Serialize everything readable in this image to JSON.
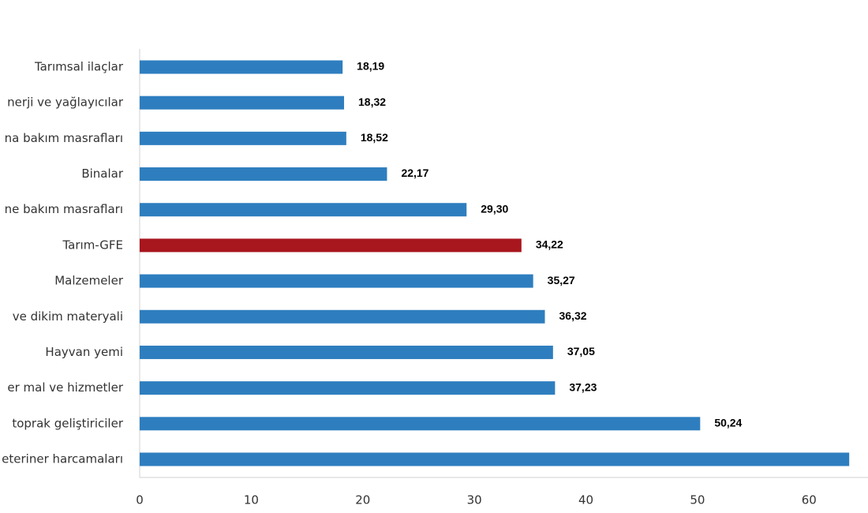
{
  "chart_data": {
    "type": "bar",
    "orientation": "horizontal",
    "categories": [
      "Tarımsal ilaçlar",
      "nerji  ve yağlayıcılar",
      "na bakım masrafları",
      "Binalar",
      "ne bakım masrafları",
      "Tarım-GFE",
      "Malzemeler",
      "ve dikim materyali",
      "Hayvan yemi",
      "er mal ve hizmetler",
      "toprak geliştiriciler",
      "eteriner harcamaları"
    ],
    "values": [
      18.19,
      18.32,
      18.52,
      22.17,
      29.3,
      34.22,
      35.27,
      36.32,
      37.05,
      37.23,
      50.24,
      63.6
    ],
    "value_labels": [
      "18,19",
      "18,32",
      "18,52",
      "22,17",
      "29,30",
      "34,22",
      "35,27",
      "36,32",
      "37,05",
      "37,23",
      "50,24",
      null
    ],
    "colors": [
      "#2e7ebf",
      "#2e7ebf",
      "#2e7ebf",
      "#2e7ebf",
      "#2e7ebf",
      "#a8161e",
      "#2e7ebf",
      "#2e7ebf",
      "#2e7ebf",
      "#2e7ebf",
      "#2e7ebf",
      "#2e7ebf"
    ],
    "xlim": [
      0,
      65
    ],
    "xticks": [
      0,
      10,
      20,
      30,
      40,
      50,
      60
    ],
    "grid": false
  }
}
